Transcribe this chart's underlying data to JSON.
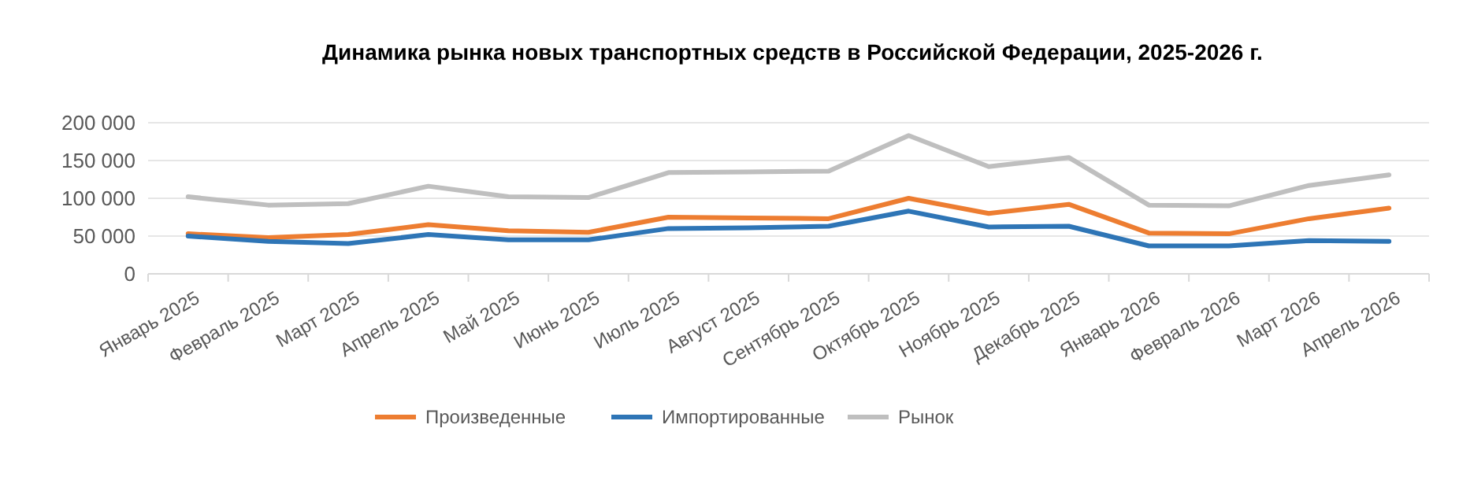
{
  "chart_data": {
    "type": "line",
    "title": "Динамика рынка новых транспортных средств в Российской Федерации, 2025-2026 г.",
    "categories": [
      "Январь 2025",
      "Февраль 2025",
      "Март 2025",
      "Апрель 2025",
      "Май 2025",
      "Июнь 2025",
      "Июль 2025",
      "Август 2025",
      "Сентябрь 2025",
      "Октябрь 2025",
      "Ноябрь 2025",
      "Декабрь 2025",
      "Январь 2026",
      "Февраль 2026",
      "Март 2026",
      "Апрель 2026"
    ],
    "series": [
      {
        "name": "Произведенные",
        "color": "#ed7d31",
        "values": [
          53000,
          48000,
          52000,
          65000,
          57000,
          55000,
          75000,
          74000,
          73000,
          100000,
          80000,
          92000,
          54000,
          53000,
          73000,
          87000
        ]
      },
      {
        "name": "Импортированные",
        "color": "#2e75b6",
        "values": [
          50000,
          43000,
          40000,
          52000,
          45000,
          45000,
          60000,
          61000,
          63000,
          83000,
          62000,
          63000,
          37000,
          37000,
          44000,
          43000
        ]
      },
      {
        "name": "Рынок",
        "color": "#bfbfbf",
        "values": [
          102000,
          91000,
          93000,
          116000,
          102000,
          101000,
          134000,
          135000,
          136000,
          183000,
          142000,
          154000,
          91000,
          90000,
          117000,
          131000
        ]
      }
    ],
    "ylim": [
      0,
      200000
    ],
    "yticks": [
      0,
      {
        "value": 50000,
        "label": "50 000"
      },
      {
        "value": 100000,
        "label": "100 000"
      },
      {
        "value": 150000,
        "label": "150 000"
      },
      {
        "value": 200000,
        "label": "200 000"
      }
    ],
    "grid": "y",
    "legend": "bottom",
    "marker": "none",
    "line_style": "solid"
  }
}
